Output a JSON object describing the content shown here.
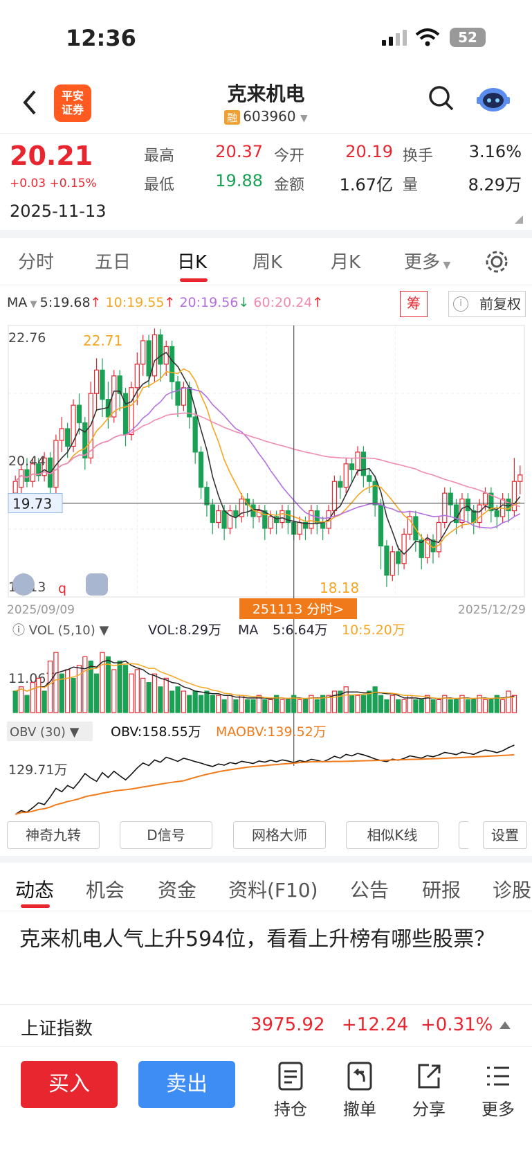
{
  "status": {
    "time": "12:36",
    "battery": "52"
  },
  "header": {
    "back_icon": "chevron-left-icon",
    "logo_text": "平安\n证券",
    "stock_name": "克来机电",
    "rong": "融",
    "stock_code": "603960",
    "search_icon": "search-icon",
    "robot_icon": "robot-icon"
  },
  "quote": {
    "price": "20.21",
    "change": "+0.03 +0.15%",
    "date": "2025-11-13",
    "high_label": "最高",
    "high": "20.37",
    "open_label": "今开",
    "open": "20.19",
    "turnover_label": "换手",
    "turnover": "3.16%",
    "low_label": "最低",
    "low": "19.88",
    "amount_label": "金额",
    "amount": "1.67亿",
    "volume_label": "量",
    "volume": "8.29万"
  },
  "tabs": [
    "分时",
    "五日",
    "日K",
    "周K",
    "月K",
    "更多"
  ],
  "ma_legend": {
    "ma": "MA",
    "ma5": "5:19.68",
    "ma10": "10:19.55",
    "ma20": "20:19.56",
    "ma60": "60:20.24",
    "chip": "筹",
    "fq": "前复权"
  },
  "colors": {
    "up": "#e8262f",
    "down": "#1ba155",
    "ma5": "#333333",
    "ma10": "#f5a623",
    "ma20": "#b36ee0",
    "ma60": "#f08ab0",
    "obv": "#111111",
    "maobv": "#f5a623"
  },
  "chart_labels": {
    "top": "22.76",
    "mid": "20.44",
    "bottom": "18.13",
    "cross": "19.73",
    "max": "22.71",
    "min": "18.18",
    "start_date": "2025/09/09",
    "end_date": "2025/12/29",
    "cursor": "251113 分时>",
    "q": "q"
  },
  "chart_data": [
    {
      "type": "candlestick",
      "title": "",
      "ylim": [
        18.13,
        22.76
      ],
      "x_range": [
        "2025/09/09",
        "2025/12/29"
      ],
      "candles": [
        [
          19.9,
          20.1,
          19.7,
          20.2
        ],
        [
          20.0,
          20.3,
          19.9,
          20.4
        ],
        [
          20.3,
          20.1,
          20.0,
          20.5
        ],
        [
          20.1,
          20.4,
          20.0,
          20.5
        ],
        [
          20.4,
          20.2,
          20.1,
          20.5
        ],
        [
          20.2,
          20.5,
          20.1,
          20.6
        ],
        [
          20.5,
          20.0,
          19.9,
          20.6
        ],
        [
          20.0,
          20.8,
          19.9,
          20.9
        ],
        [
          20.8,
          21.0,
          20.6,
          21.2
        ],
        [
          21.0,
          20.7,
          20.5,
          21.1
        ],
        [
          20.7,
          21.4,
          20.6,
          21.5
        ],
        [
          21.4,
          21.1,
          20.9,
          21.6
        ],
        [
          21.1,
          20.5,
          20.3,
          21.2
        ],
        [
          20.5,
          21.6,
          20.4,
          21.8
        ],
        [
          21.6,
          22.0,
          21.3,
          22.2
        ],
        [
          22.0,
          21.5,
          21.2,
          22.2
        ],
        [
          21.5,
          21.2,
          21.0,
          21.8
        ],
        [
          21.2,
          21.9,
          21.1,
          22.0
        ],
        [
          21.9,
          21.6,
          21.3,
          22.0
        ],
        [
          21.6,
          20.9,
          20.7,
          21.7
        ],
        [
          20.9,
          21.7,
          20.8,
          21.8
        ],
        [
          21.7,
          22.1,
          21.4,
          22.3
        ],
        [
          22.1,
          22.5,
          21.9,
          22.6
        ],
        [
          22.5,
          21.9,
          21.7,
          22.6
        ],
        [
          21.9,
          22.6,
          21.8,
          22.71
        ],
        [
          22.6,
          22.1,
          21.8,
          22.7
        ],
        [
          22.1,
          22.4,
          21.9,
          22.5
        ],
        [
          22.4,
          21.8,
          21.5,
          22.5
        ],
        [
          21.8,
          21.4,
          21.2,
          21.9
        ],
        [
          21.4,
          21.7,
          21.3,
          21.8
        ],
        [
          21.7,
          21.2,
          21.0,
          21.8
        ],
        [
          21.2,
          20.6,
          20.4,
          21.3
        ],
        [
          20.6,
          20.0,
          19.8,
          20.7
        ],
        [
          20.0,
          19.7,
          19.5,
          20.1
        ],
        [
          19.7,
          19.4,
          19.2,
          19.8
        ],
        [
          19.4,
          19.6,
          19.3,
          19.7
        ],
        [
          19.6,
          19.3,
          19.1,
          19.7
        ],
        [
          19.3,
          19.6,
          19.2,
          19.7
        ],
        [
          19.6,
          19.5,
          19.3,
          19.7
        ],
        [
          19.5,
          19.8,
          19.4,
          19.9
        ],
        [
          19.8,
          19.7,
          19.5,
          19.9
        ],
        [
          19.7,
          19.5,
          19.3,
          19.8
        ],
        [
          19.5,
          19.6,
          19.4,
          19.7
        ],
        [
          19.6,
          19.3,
          19.1,
          19.7
        ],
        [
          19.3,
          19.5,
          19.2,
          19.6
        ],
        [
          19.5,
          19.4,
          19.2,
          19.6
        ],
        [
          19.4,
          19.6,
          19.3,
          19.7
        ],
        [
          19.6,
          19.4,
          19.2,
          19.7
        ],
        [
          19.4,
          19.2,
          19.1,
          19.5
        ],
        [
          19.2,
          19.4,
          19.1,
          19.5
        ],
        [
          19.4,
          19.3,
          19.1,
          19.5
        ],
        [
          19.3,
          19.6,
          19.2,
          19.7
        ],
        [
          19.6,
          19.4,
          19.2,
          19.7
        ],
        [
          19.4,
          19.3,
          19.1,
          19.5
        ],
        [
          19.3,
          19.6,
          19.2,
          19.7
        ],
        [
          19.6,
          20.1,
          19.5,
          20.2
        ],
        [
          20.1,
          20.0,
          19.8,
          20.2
        ],
        [
          20.0,
          20.4,
          19.9,
          20.5
        ],
        [
          20.4,
          20.3,
          20.1,
          20.5
        ],
        [
          20.3,
          20.6,
          20.2,
          20.7
        ],
        [
          20.6,
          20.2,
          20.0,
          20.7
        ],
        [
          20.2,
          20.1,
          19.9,
          20.3
        ],
        [
          20.1,
          19.7,
          19.5,
          20.2
        ],
        [
          19.7,
          19.0,
          18.6,
          19.8
        ],
        [
          19.0,
          18.5,
          18.3,
          19.1
        ],
        [
          18.5,
          18.9,
          18.4,
          19.0
        ],
        [
          18.9,
          18.7,
          18.5,
          19.0
        ],
        [
          18.7,
          19.2,
          18.6,
          19.3
        ],
        [
          19.2,
          19.5,
          19.1,
          19.6
        ],
        [
          19.5,
          19.1,
          18.9,
          19.6
        ],
        [
          19.1,
          18.8,
          18.6,
          19.2
        ],
        [
          18.8,
          19.1,
          18.7,
          19.2
        ],
        [
          19.1,
          18.9,
          18.7,
          19.2
        ],
        [
          18.9,
          19.4,
          18.8,
          19.5
        ],
        [
          19.4,
          19.9,
          19.3,
          20.0
        ],
        [
          19.9,
          19.7,
          19.5,
          20.0
        ],
        [
          19.7,
          19.4,
          19.2,
          19.8
        ],
        [
          19.4,
          19.8,
          19.3,
          19.9
        ],
        [
          19.8,
          19.6,
          19.4,
          19.9
        ],
        [
          19.6,
          19.4,
          19.2,
          19.7
        ],
        [
          19.4,
          19.7,
          19.3,
          19.8
        ],
        [
          19.7,
          19.9,
          19.6,
          20.0
        ],
        [
          19.9,
          19.6,
          19.4,
          20.0
        ],
        [
          19.6,
          19.5,
          19.3,
          19.7
        ],
        [
          19.5,
          19.8,
          19.4,
          19.9
        ],
        [
          19.8,
          19.6,
          19.4,
          19.9
        ],
        [
          19.6,
          20.1,
          19.5,
          20.5
        ],
        [
          20.1,
          20.21,
          19.88,
          20.37
        ]
      ],
      "series": [
        {
          "name": "MA5"
        },
        {
          "name": "MA10"
        },
        {
          "name": "MA20"
        },
        {
          "name": "MA60"
        }
      ]
    },
    {
      "type": "bar",
      "title": "VOL (5,10)",
      "legend": {
        "vol": "VOL:8.29万",
        "ma": "MA",
        "ma5": "5:6.64万",
        "ma10": "10:5.20万"
      },
      "ylabel_value": "11.06万",
      "values": [
        5,
        6,
        4,
        7,
        8,
        5,
        12,
        14,
        9,
        10,
        8,
        11,
        13,
        12,
        9,
        14,
        13,
        10,
        12,
        11,
        9,
        10,
        8,
        7,
        9,
        6,
        8,
        5,
        6,
        5,
        4,
        5,
        4,
        5,
        4,
        4,
        3,
        4,
        3,
        4,
        3,
        3,
        4,
        3,
        3,
        4,
        3,
        3,
        4,
        3,
        3,
        4,
        3,
        4,
        4,
        5,
        5,
        6,
        4,
        4,
        4,
        5,
        6,
        4,
        3,
        4,
        3,
        3,
        4,
        3,
        3,
        4,
        3,
        3,
        4,
        3,
        3,
        4,
        3,
        3,
        4,
        3,
        3,
        4,
        3,
        5,
        4
      ],
      "up": [
        0,
        1,
        0,
        1,
        1,
        0,
        1,
        1,
        0,
        1,
        0,
        1,
        1,
        0,
        0,
        1,
        0,
        1,
        0,
        0,
        1,
        1,
        1,
        0,
        1,
        0,
        1,
        0,
        0,
        1,
        0,
        0,
        0,
        0,
        0,
        1,
        0,
        1,
        0,
        1,
        0,
        0,
        1,
        0,
        1,
        0,
        1,
        0,
        0,
        1,
        0,
        1,
        0,
        0,
        1,
        1,
        0,
        1,
        0,
        1,
        0,
        0,
        0,
        0,
        0,
        1,
        0,
        1,
        1,
        0,
        0,
        1,
        0,
        1,
        1,
        0,
        0,
        1,
        0,
        0,
        1,
        1,
        0,
        0,
        1,
        1,
        1
      ]
    },
    {
      "type": "line",
      "title": "OBV (30)",
      "legend": {
        "obv": "OBV:158.55万",
        "maobv": "MAOBV:139.52万"
      },
      "ylabel_value": "129.71万"
    }
  ],
  "tools": [
    "神奇九转",
    "D信号",
    "网格大师",
    "相似K线",
    "设置"
  ],
  "news_tabs": [
    "动态",
    "机会",
    "资金",
    "资料(F10)",
    "公告",
    "研报",
    "诊股"
  ],
  "news": {
    "headline": "克来机电人气上升594位，看看上升榜有哪些股票？"
  },
  "index": {
    "name": "上证指数",
    "value": "3975.92",
    "change": "+12.24",
    "pct": "+0.31%"
  },
  "bottom": {
    "buy": "买入",
    "sell": "卖出",
    "hold": "持仓",
    "cancel": "撤单",
    "share": "分享",
    "more": "更多"
  }
}
